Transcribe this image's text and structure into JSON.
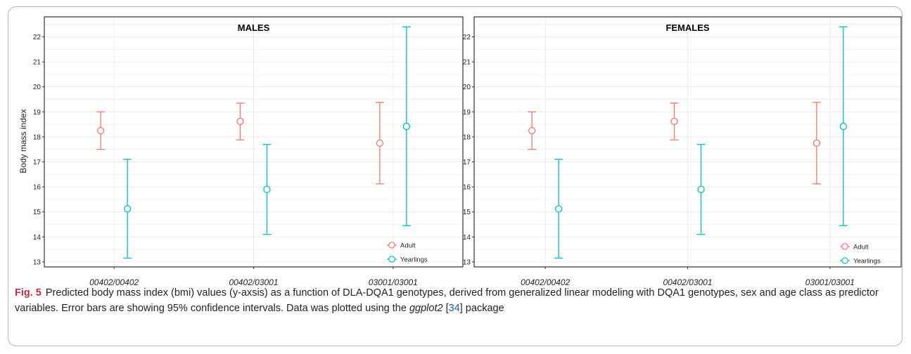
{
  "chart_data": {
    "type": "scatter",
    "ylabel": "Body mass index",
    "ylim": [
      12.8,
      22.8
    ],
    "yticks": [
      13,
      14,
      15,
      16,
      17,
      18,
      19,
      20,
      21,
      22
    ],
    "categories": [
      "00402/00402",
      "00402/03001",
      "03001/03001"
    ],
    "grid": true,
    "legend_position": "bottom-right",
    "legend_shape": "point-with-errorbar",
    "colors": {
      "Adult": "#F8766D",
      "Yearlings": "#00BFC4"
    },
    "panels": [
      {
        "title": "MALES",
        "series": [
          {
            "name": "Adult",
            "values": [
              18.25,
              18.62,
              17.75
            ],
            "lower": [
              17.5,
              17.88,
              16.12
            ],
            "upper": [
              19.0,
              19.35,
              19.38
            ]
          },
          {
            "name": "Yearlings",
            "values": [
              15.12,
              15.9,
              18.42
            ],
            "lower": [
              13.15,
              14.1,
              14.45
            ],
            "upper": [
              17.1,
              17.7,
              22.4
            ]
          }
        ]
      },
      {
        "title": "FEMALES",
        "series": [
          {
            "name": "Adult",
            "values": [
              18.25,
              18.62,
              17.75
            ],
            "lower": [
              17.5,
              17.88,
              16.12
            ],
            "upper": [
              19.0,
              19.35,
              19.38
            ]
          },
          {
            "name": "Yearlings",
            "values": [
              15.12,
              15.9,
              18.42
            ],
            "lower": [
              13.15,
              14.1,
              14.45
            ],
            "upper": [
              17.1,
              17.7,
              22.4
            ]
          }
        ]
      }
    ]
  },
  "caption": {
    "label": "Fig. 5",
    "text_1": "Predicted body mass index (bmi) values (y-axsis) as a function of DLA-DQA1 genotypes, derived from generalized linear modeling with DQA1 genotypes, sex and age class as predictor variables. Error bars are showing 95% confidence intervals. Data was plotted using the ",
    "italic": "ggplot2",
    "ref_open": " [",
    "ref": "34",
    "ref_close": "]",
    "text_2": " package"
  }
}
